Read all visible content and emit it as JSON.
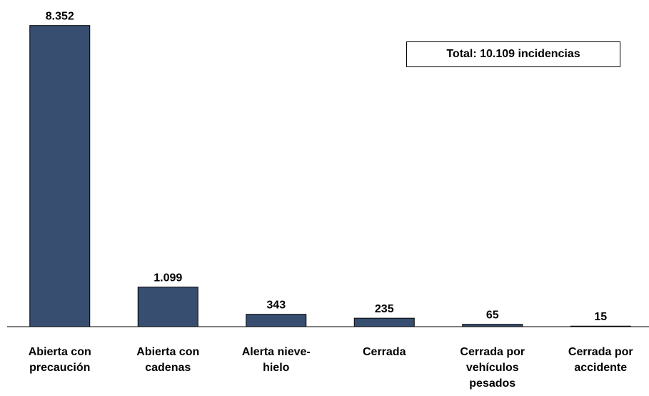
{
  "chart_data": {
    "type": "bar",
    "categories": [
      "Abierta con precaución",
      "Abierta con cadenas",
      "Alerta nieve-hielo",
      "Cerrada",
      "Cerrada por vehículos pesados",
      "Cerrada por accidente"
    ],
    "values": [
      8352,
      1099,
      343,
      235,
      65,
      15
    ],
    "value_labels": [
      "8.352",
      "1.099",
      "343",
      "235",
      "65",
      "15"
    ],
    "color": "#374e70",
    "annotation": "Total: 10.109 incidencias",
    "ylim": [
      0,
      9000
    ]
  }
}
